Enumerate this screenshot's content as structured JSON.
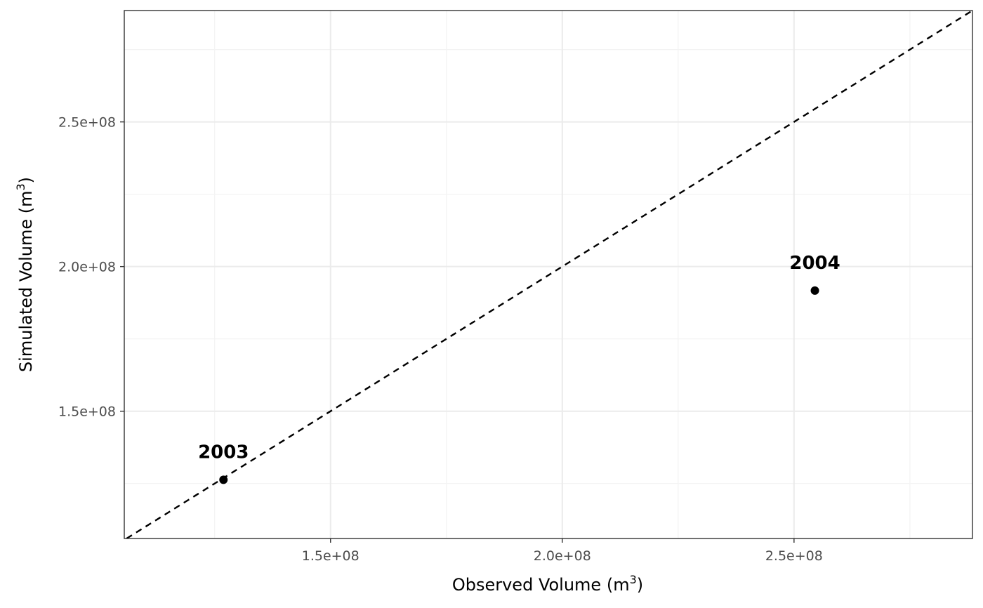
{
  "chart_data": {
    "type": "scatter",
    "title": "",
    "xlabel": "Observed Volume (m",
    "ylabel": "Simulated Volume (m",
    "axis_label_superscript": "3",
    "axis_label_close": ")",
    "xlim": [
      105500000,
      288500000
    ],
    "ylim": [
      106000000,
      288500000
    ],
    "x_ticks": [
      150000000,
      200000000,
      250000000
    ],
    "x_tick_labels": [
      "1.5e+08",
      "2.0e+08",
      "2.5e+08"
    ],
    "y_ticks": [
      150000000,
      200000000,
      250000000
    ],
    "y_tick_labels": [
      "1.5e+08",
      "2.0e+08",
      "2.5e+08"
    ],
    "grid": true,
    "points": [
      {
        "label": "2003",
        "x": 126900000,
        "y": 126300000
      },
      {
        "label": "2004",
        "x": 254500000,
        "y": 191700000
      }
    ],
    "reference_line": {
      "type": "identity",
      "style": "dashed",
      "slope": 1,
      "intercept": 0
    },
    "colors": {
      "point": "#000000",
      "line": "#000000",
      "grid_major": "#ebebeb",
      "grid_minor": "#f3f3f3",
      "panel_border": "#333333"
    }
  }
}
